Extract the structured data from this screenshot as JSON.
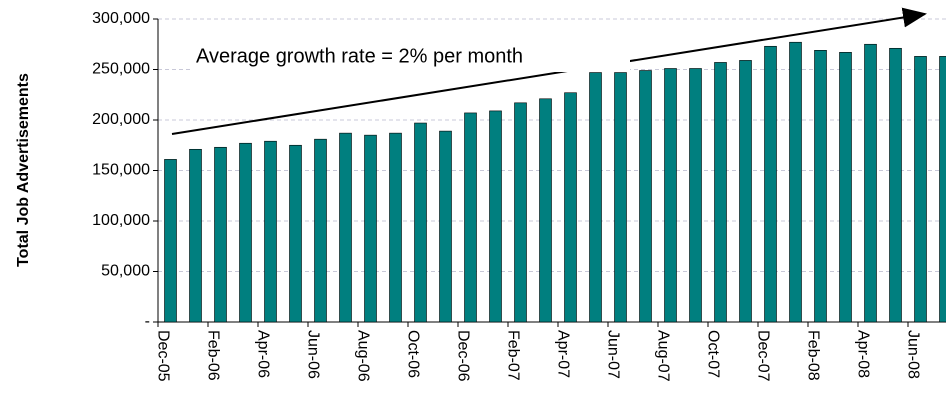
{
  "chart_data": {
    "type": "bar",
    "y_label": "Total Job Advertisements",
    "annotation": "Average growth rate = 2% per month",
    "categories": [
      "Dec-05",
      null,
      "Feb-06",
      null,
      "Apr-06",
      null,
      "Jun-06",
      null,
      "Aug-06",
      null,
      "Oct-06",
      null,
      "Dec-06",
      null,
      "Feb-07",
      null,
      "Apr-07",
      null,
      "Jun-07",
      null,
      "Aug-07",
      null,
      "Oct-07",
      null,
      "Dec-07",
      null,
      "Feb-08",
      null,
      "Apr-08",
      null,
      "Jun-08",
      null
    ],
    "values": [
      161000,
      171000,
      173000,
      177000,
      179000,
      175000,
      181000,
      187000,
      185000,
      187000,
      197000,
      189000,
      207000,
      209000,
      217000,
      221000,
      227000,
      247000,
      247000,
      249000,
      251000,
      251000,
      257000,
      259000,
      273000,
      277000,
      269000,
      267000,
      275000,
      271000,
      263000,
      263000
    ],
    "color": "#007f7f",
    "ylim": [
      0,
      300000
    ],
    "yticks": [
      {
        "value": 0,
        "label": "-"
      },
      {
        "value": 50000,
        "label": "50,000"
      },
      {
        "value": 100000,
        "label": "100,000"
      },
      {
        "value": 150000,
        "label": "150,000"
      },
      {
        "value": 200000,
        "label": "200,000"
      },
      {
        "value": 250000,
        "label": "250,000"
      },
      {
        "value": 300000,
        "label": "300,000"
      }
    ],
    "grid": true
  }
}
